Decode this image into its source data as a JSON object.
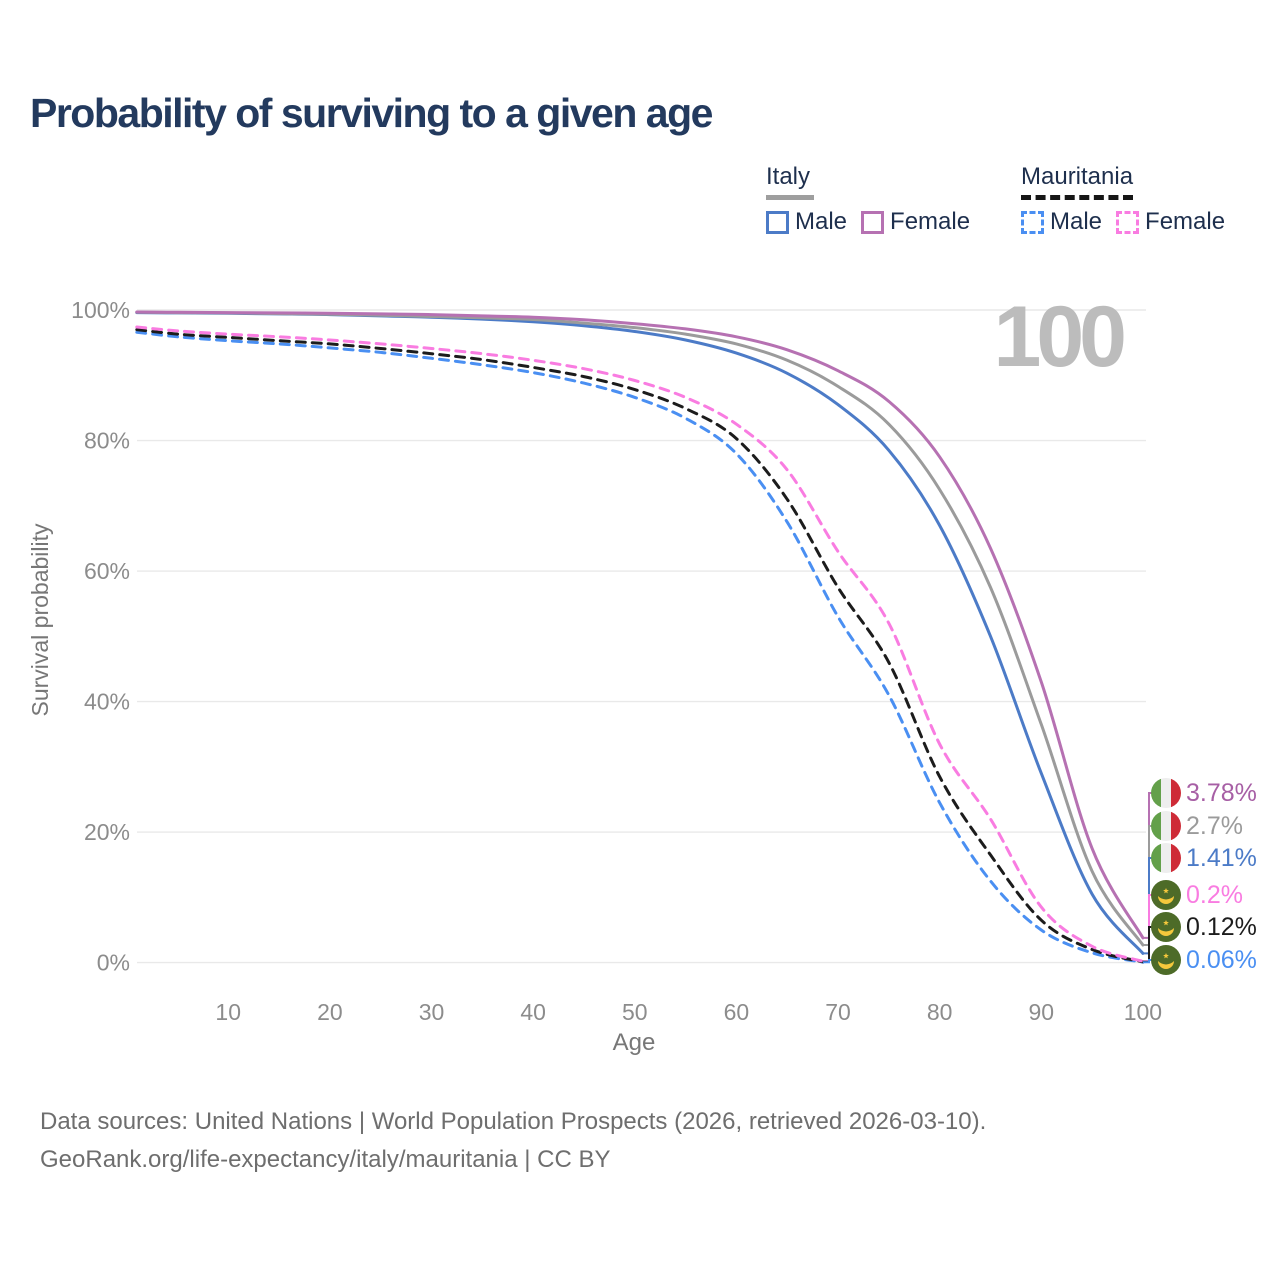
{
  "title": "Probability of surviving to a given age",
  "watermark": "100",
  "legend": {
    "groups": [
      {
        "label": "Italy",
        "style": "solid",
        "items": [
          {
            "label": "Male"
          },
          {
            "label": "Female"
          }
        ]
      },
      {
        "label": "Mauritania",
        "style": "dashed",
        "items": [
          {
            "label": "Male"
          },
          {
            "label": "Female"
          }
        ]
      }
    ]
  },
  "chart_data": {
    "type": "line",
    "title": "Probability of surviving to a given age",
    "xlabel": "Age",
    "ylabel": "Survival probability",
    "xlim": [
      1,
      100
    ],
    "ylim": [
      0,
      100
    ],
    "grid": "horizontal",
    "x_ticks": [
      {
        "label": "10",
        "value": 10
      },
      {
        "label": "20",
        "value": 20
      },
      {
        "label": "30",
        "value": 30
      },
      {
        "label": "40",
        "value": 40
      },
      {
        "label": "50",
        "value": 50
      },
      {
        "label": "60",
        "value": 60
      },
      {
        "label": "70",
        "value": 70
      },
      {
        "label": "80",
        "value": 80
      },
      {
        "label": "90",
        "value": 90
      },
      {
        "label": "100",
        "value": 100
      }
    ],
    "y_ticks": [
      {
        "label": "0%",
        "value": 0
      },
      {
        "label": "20%",
        "value": 20
      },
      {
        "label": "40%",
        "value": 40
      },
      {
        "label": "60%",
        "value": 60
      },
      {
        "label": "80%",
        "value": 80
      },
      {
        "label": "100%",
        "value": 100
      }
    ],
    "ages": [
      1,
      5,
      10,
      15,
      20,
      25,
      30,
      35,
      40,
      45,
      50,
      55,
      60,
      65,
      70,
      75,
      80,
      85,
      90,
      95,
      100
    ],
    "series": [
      {
        "name": "Mauritania Male",
        "country": "Mauritania",
        "sex": "Male",
        "color": "#4a8ff2",
        "dash": true,
        "flag": "mr",
        "end_label": "0.06%",
        "values": [
          96.6,
          95.9,
          95.3,
          94.8,
          94.2,
          93.5,
          92.6,
          91.6,
          90.4,
          88.8,
          86.6,
          83.4,
          78,
          67.5,
          53,
          41,
          24.5,
          12.5,
          5,
          1.5,
          0.06
        ]
      },
      {
        "name": "Mauritania Both sexes",
        "country": "Mauritania",
        "sex": "Both",
        "color": "#1c1c1c",
        "dash": true,
        "flag": "mr",
        "end_label": "0.12%",
        "values": [
          97.0,
          96.3,
          95.8,
          95.3,
          94.8,
          94.1,
          93.3,
          92.4,
          91.2,
          89.8,
          87.8,
          84.9,
          80.3,
          71,
          57.5,
          46,
          28.5,
          16.5,
          6.5,
          2,
          0.12
        ]
      },
      {
        "name": "Mauritania Female",
        "country": "Mauritania",
        "sex": "Female",
        "color": "#f97ce1",
        "dash": true,
        "flag": "mr",
        "end_label": "0.2%",
        "values": [
          97.4,
          96.8,
          96.3,
          95.9,
          95.4,
          94.8,
          94.1,
          93.3,
          92.3,
          91,
          89.2,
          86.6,
          82.5,
          75.5,
          63,
          52,
          33.5,
          22,
          8.5,
          2.5,
          0.2
        ]
      },
      {
        "name": "Italy Male",
        "country": "Italy",
        "sex": "Male",
        "color": "#4c7bc7",
        "dash": false,
        "flag": "it",
        "end_label": "1.41%",
        "values": [
          99.6,
          99.55,
          99.5,
          99.4,
          99.3,
          99.1,
          98.9,
          98.6,
          98.2,
          97.6,
          96.7,
          95.4,
          93.4,
          90.3,
          85.5,
          78.5,
          67,
          50,
          29,
          10.5,
          1.41
        ]
      },
      {
        "name": "Italy Both sexes",
        "country": "Italy",
        "sex": "Both",
        "color": "#9b9b9b",
        "dash": false,
        "flag": "it",
        "end_label": "2.7%",
        "values": [
          99.65,
          99.6,
          99.55,
          99.45,
          99.35,
          99.2,
          99.0,
          98.8,
          98.55,
          98.0,
          97.3,
          96.3,
          94.8,
          92.3,
          88.3,
          82.5,
          72.5,
          57.5,
          36.5,
          14,
          2.7
        ]
      },
      {
        "name": "Italy Female",
        "country": "Italy",
        "sex": "Female",
        "color": "#b671b2",
        "dash": false,
        "flag": "it",
        "end_label": "3.78%",
        "values": [
          99.7,
          99.65,
          99.6,
          99.55,
          99.5,
          99.4,
          99.3,
          99.1,
          98.9,
          98.5,
          97.9,
          97.1,
          95.9,
          93.9,
          90.7,
          86,
          77.5,
          63.5,
          43,
          17.5,
          3.78
        ]
      }
    ],
    "end_label_colors": {
      "Italy Female": "#a75fa5",
      "Italy Both sexes": "#9b9b9b",
      "Italy Male": "#4c7bc7",
      "Mauritania Female": "#f97ce1",
      "Mauritania Both sexes": "#1c1c1c",
      "Mauritania Male": "#4a8ff2"
    },
    "legend_position": "top-right"
  },
  "flags": {
    "it": {
      "green": "#63a04a",
      "white": "#eeeeee",
      "red": "#ce2b37"
    },
    "mr": {
      "field": "#4d6b28",
      "gold": "#f5c83c"
    }
  },
  "footer": {
    "line1": "Data sources: United Nations | World Population Prospects (2026, retrieved 2026-03-10).",
    "line2": "GeoRank.org/life-expectancy/italy/mauritania | CC BY"
  }
}
